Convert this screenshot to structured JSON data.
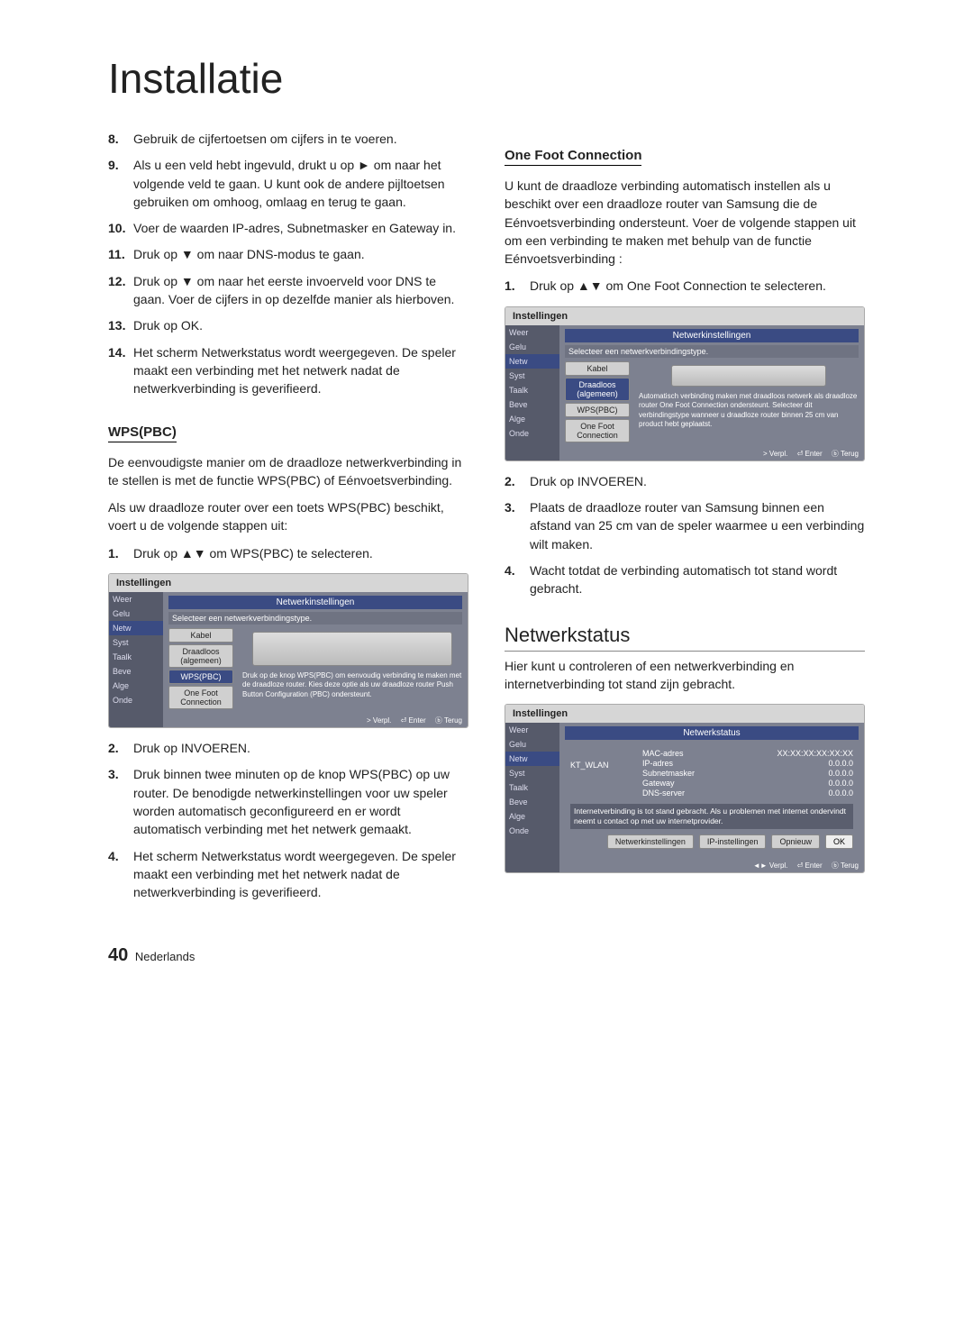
{
  "title": "Installatie",
  "left": {
    "steps": [
      "Gebruik de cijfertoetsen om cijfers in te voeren.",
      "Als u een veld hebt ingevuld, drukt u op ► om naar het volgende veld te gaan. U kunt ook de andere pijltoetsen gebruiken om omhoog, omlaag en terug te gaan.",
      "Voer de waarden IP-adres, Subnetmasker en Gateway in.",
      "Druk op ▼ om naar DNS-modus te gaan.",
      "Druk op ▼ om naar het eerste invoerveld voor DNS te gaan. Voer de cijfers in op dezelfde manier als hierboven.",
      "Druk op OK.",
      "Het scherm Netwerkstatus wordt weergegeven. De speler maakt een verbinding met het netwerk nadat de netwerkverbinding is geverifieerd."
    ],
    "wps_heading": "WPS(PBC)",
    "wps_p1": "De eenvoudigste manier om de draadloze netwerkverbinding in te stellen is met de functie WPS(PBC) of Eénvoetsverbinding.",
    "wps_p2": "Als uw draadloze router over een toets WPS(PBC) beschikt, voert u de volgende stappen uit:",
    "wps_step1": "Druk op ▲▼ om WPS(PBC) te selecteren.",
    "wps_after": [
      "Druk op INVOEREN.",
      "Druk binnen twee minuten op de knop WPS(PBC) op uw router. De benodigde netwerkinstellingen voor uw speler worden automatisch geconfigureerd en er wordt automatisch verbinding met het netwerk gemaakt.",
      "Het scherm Netwerkstatus wordt weergegeven. De speler maakt een verbinding met het netwerk nadat de netwerkverbinding is geverifieerd."
    ]
  },
  "right": {
    "ofc_heading": "One Foot Connection",
    "ofc_p": "U kunt de draadloze verbinding automatisch instellen als u beschikt over een draadloze router van Samsung die de Eénvoetsverbinding ondersteunt. Voer de volgende stappen uit om een verbinding te maken met behulp van de functie Eénvoetsverbinding :",
    "ofc_step1": "Druk op ▲▼ om One Foot Connection te selecteren.",
    "ofc_after": [
      "Druk op INVOEREN.",
      "Plaats de draadloze router van Samsung binnen een afstand van 25 cm van de speler waarmee u een verbinding wilt maken.",
      "Wacht totdat de verbinding automatisch tot stand wordt gebracht."
    ],
    "ns_heading": "Netwerkstatus",
    "ns_p": "Hier kunt u controleren of een netwerkverbinding en internetverbinding tot stand zijn gebracht."
  },
  "settings_box": {
    "title": "Instellingen",
    "banner": "Netwerkinstellingen",
    "desc": "Selecteer een netwerkverbindingstype.",
    "sidebar": [
      "Weer",
      "Gelu",
      "Netw",
      "Syst",
      "Taalk",
      "Beve",
      "Alge",
      "Onde"
    ],
    "buttons": [
      "Kabel",
      "Draadloos (algemeen)",
      "WPS(PBC)",
      "One Foot Connection"
    ],
    "wps_right_text": "Druk op de knop WPS(PBC) om eenvoudig verbinding te maken met de draadloze router. Kies deze optie als uw draadloze router Push Button Configuration (PBC) ondersteunt.",
    "ofc_right_text": "Automatisch verbinding maken met draadloos netwerk als draadloze router One Foot Connection ondersteunt. Selecteer dit verbindingstype wanneer u draadloze router binnen 25 cm van product hebt geplaatst.",
    "footer": [
      "> Verpl.",
      "⏎ Enter",
      "ⓑ Terug"
    ]
  },
  "ns_box": {
    "title": "Instellingen",
    "banner": "Netwerkstatus",
    "wlan": "KT_WLAN",
    "fields": {
      "mac": "MAC-adres",
      "mac_v": "XX:XX:XX:XX:XX:XX",
      "ip": "IP-adres",
      "ip_v": "0.0.0.0",
      "sub": "Subnetmasker",
      "sub_v": "0.0.0.0",
      "gw": "Gateway",
      "gw_v": "0.0.0.0",
      "dns": "DNS-server",
      "dns_v": "0.0.0.0"
    },
    "msg": "Internetverbinding is tot stand gebracht. Als u problemen met internet ondervindt neemt u contact op met uw internetprovider.",
    "actions": [
      "Netwerkinstellingen",
      "IP-instellingen",
      "Opnieuw",
      "OK"
    ],
    "footer": [
      "◄► Verpl.",
      "⏎ Enter",
      "ⓑ Terug"
    ]
  },
  "footer": {
    "num": "40",
    "lang": "Nederlands"
  }
}
